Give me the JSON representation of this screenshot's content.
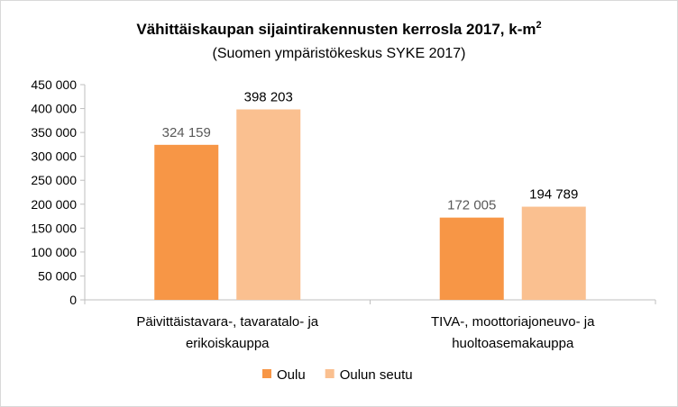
{
  "chart_data": {
    "type": "bar",
    "title": "Vähittäiskaupan sijaintirakennusten kerrosla 2017, k-m",
    "title_superscript": "2",
    "subtitle": "(Suomen ympäristökeskus SYKE 2017)",
    "categories": [
      [
        "Päivittäistavara-, tavaratalo- ja",
        "erikoiskauppa"
      ],
      [
        "TIVA-, moottoriajoneuvo- ja",
        "huoltoasemakauppa"
      ]
    ],
    "series": [
      {
        "name": "Oulu",
        "values": [
          324159,
          172005
        ],
        "labels": [
          "324 159",
          "172 005"
        ],
        "color": "#f79646",
        "label_color": "#595959"
      },
      {
        "name": "Oulun seutu",
        "values": [
          398203,
          194789
        ],
        "labels": [
          "398 203",
          "194 789"
        ],
        "color": "#fac090",
        "label_color": "#000000"
      }
    ],
    "ylim": [
      0,
      450000
    ],
    "yticks": [
      0,
      50000,
      100000,
      150000,
      200000,
      250000,
      300000,
      350000,
      400000,
      450000
    ],
    "ytick_labels": [
      "0",
      "50 000",
      "100 000",
      "150 000",
      "200 000",
      "250 000",
      "300 000",
      "350 000",
      "400 000",
      "450 000"
    ],
    "grid": false,
    "legend_position": "bottom"
  }
}
